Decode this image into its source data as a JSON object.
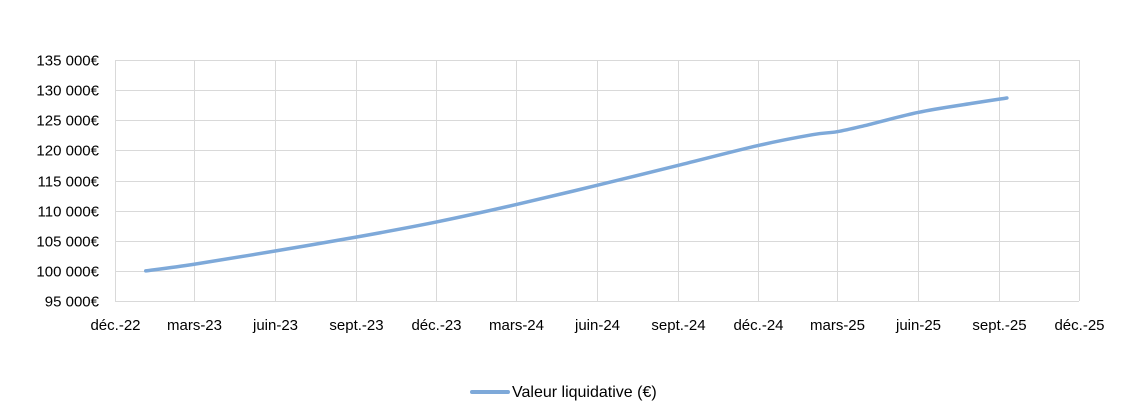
{
  "chart_data": {
    "type": "line",
    "x": [
      "2023-01-05",
      "2023-03-01",
      "2023-06-01",
      "2023-09-01",
      "2023-12-01",
      "2024-03-01",
      "2024-06-01",
      "2024-09-01",
      "2024-12-01",
      "2025-02-01",
      "2025-03-01",
      "2025-04-01",
      "2025-06-01",
      "2025-08-01",
      "2025-09-10"
    ],
    "series": [
      {
        "name": "Valeur liquidative (€)",
        "values": [
          100000,
          101100,
          103300,
          105600,
          108100,
          111000,
          114200,
          117500,
          120800,
          122600,
          123100,
          124100,
          126300,
          127800,
          128700
        ],
        "color": "#7ea9d9"
      }
    ],
    "xticks": [
      {
        "date": "2022-12-01",
        "label": "déc.-22"
      },
      {
        "date": "2023-03-01",
        "label": "mars-23"
      },
      {
        "date": "2023-06-01",
        "label": "juin-23"
      },
      {
        "date": "2023-09-01",
        "label": "sept.-23"
      },
      {
        "date": "2023-12-01",
        "label": "déc.-23"
      },
      {
        "date": "2024-03-01",
        "label": "mars-24"
      },
      {
        "date": "2024-06-01",
        "label": "juin-24"
      },
      {
        "date": "2024-09-01",
        "label": "sept.-24"
      },
      {
        "date": "2024-12-01",
        "label": "déc.-24"
      },
      {
        "date": "2025-03-01",
        "label": "mars-25"
      },
      {
        "date": "2025-06-01",
        "label": "juin-25"
      },
      {
        "date": "2025-09-01",
        "label": "sept.-25"
      },
      {
        "date": "2025-12-01",
        "label": "déc.-25"
      }
    ],
    "yticks": [
      {
        "value": 95000,
        "label": "95 000€"
      },
      {
        "value": 100000,
        "label": "100 000€"
      },
      {
        "value": 105000,
        "label": "105 000€"
      },
      {
        "value": 110000,
        "label": "110 000€"
      },
      {
        "value": 115000,
        "label": "115 000€"
      },
      {
        "value": 120000,
        "label": "120 000€"
      },
      {
        "value": 125000,
        "label": "125 000€"
      },
      {
        "value": 130000,
        "label": "130 000€"
      },
      {
        "value": 135000,
        "label": "135 000€"
      }
    ],
    "xlim": [
      "2022-12-01",
      "2025-12-01"
    ],
    "ylim": [
      95000,
      135000
    ],
    "grid": true,
    "legend_position": "bottom",
    "gridline_color": "#d9d9d9"
  }
}
